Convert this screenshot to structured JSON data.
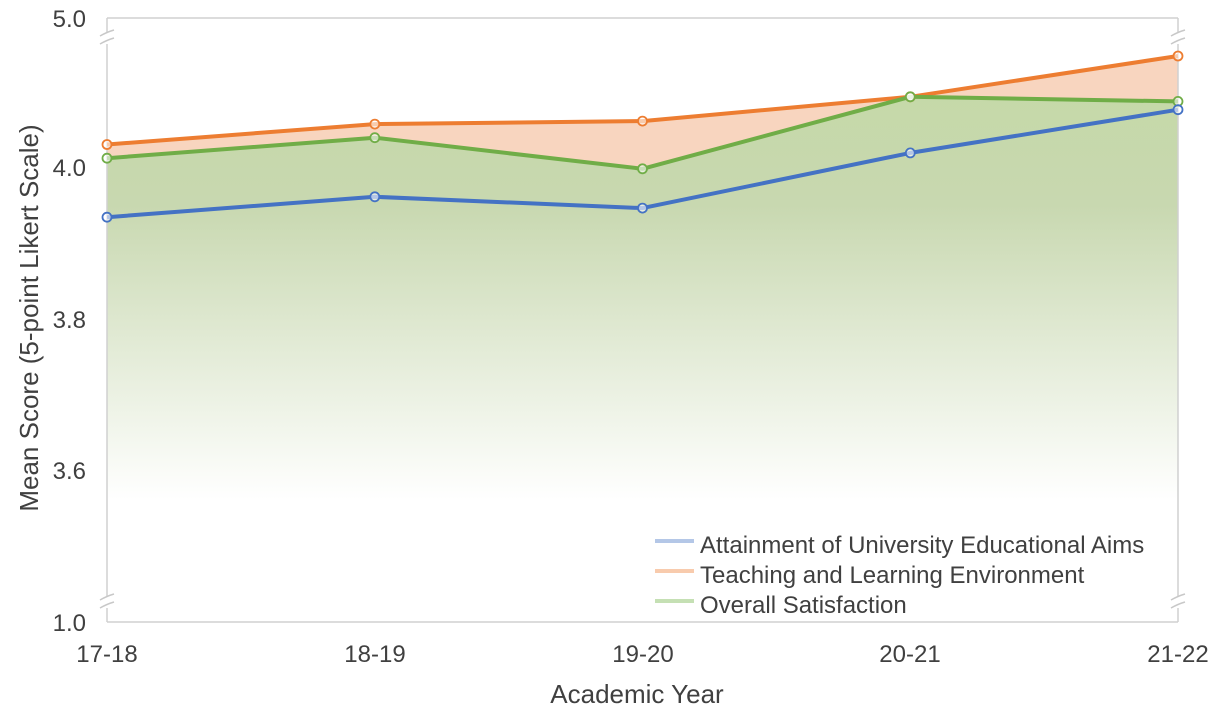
{
  "chart_data": {
    "type": "line",
    "title": "",
    "xlabel": "Academic Year",
    "ylabel": "Mean Score (5-point Likert Scale)",
    "categories": [
      "17-18",
      "18-19",
      "19-20",
      "20-21",
      "21-22"
    ],
    "y_ticks": [
      "5.0",
      "4.0",
      "3.8",
      "3.6",
      "1.0"
    ],
    "y_axis_note": "broken axis: linear 3.5–4.3 in the middle with breaks up to 5.0 and down to 1.0",
    "legend_position": "bottom-right",
    "grid": false,
    "series": [
      {
        "name": "Attainment of University Educational Aims",
        "color": "#4472c4",
        "values": [
          3.935,
          3.962,
          3.947,
          4.02,
          4.077
        ]
      },
      {
        "name": "Teaching and Learning Environment",
        "color": "#ed7d31",
        "values": [
          4.031,
          4.058,
          4.062,
          4.094,
          4.148
        ]
      },
      {
        "name": "Overall Satisfaction",
        "color": "#70ad47",
        "values": [
          4.013,
          4.04,
          3.999,
          4.094,
          4.088
        ]
      }
    ],
    "legend_colors": [
      "#b4c7e7",
      "#f8cbad",
      "#c5e0b4"
    ]
  }
}
